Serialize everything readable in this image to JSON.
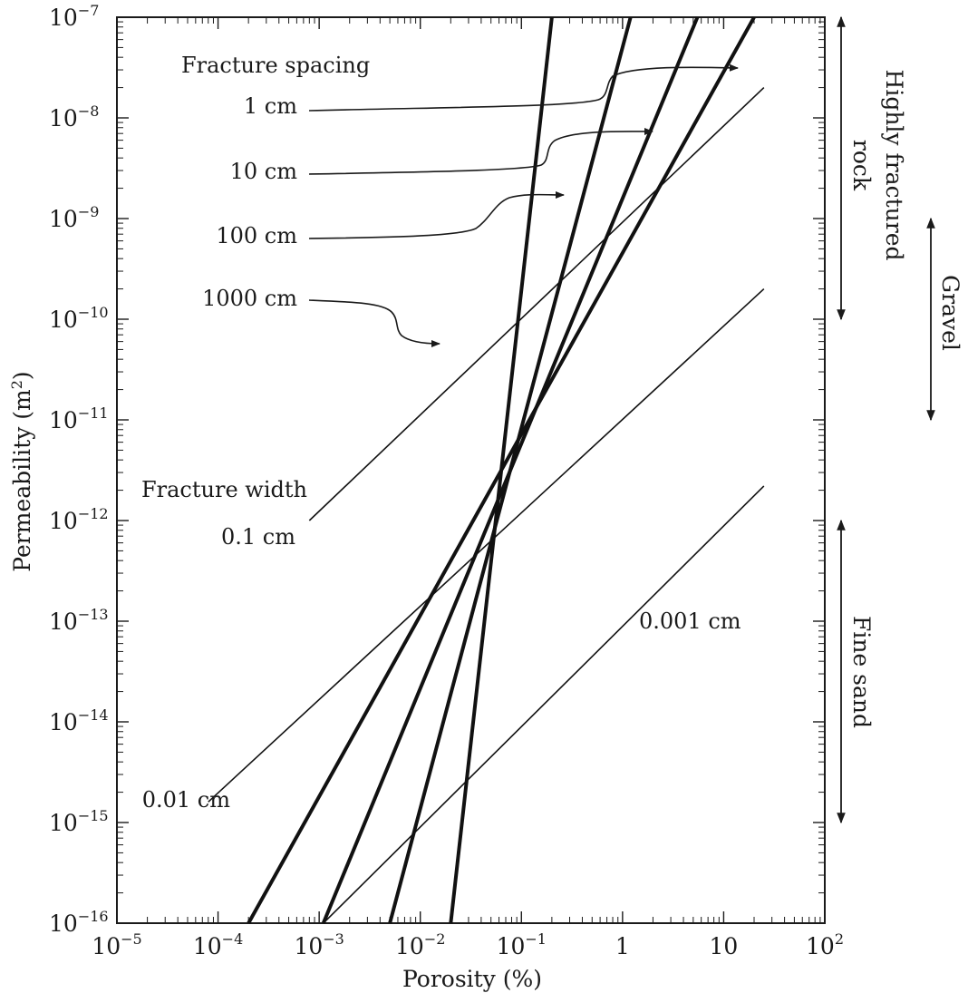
{
  "chart_data": {
    "type": "line",
    "xlabel": "Porosity (%)",
    "ylabel_main": "Permeability (m",
    "ylabel_sup": "2",
    "ylabel_close": ")",
    "x_scale": "log",
    "y_scale": "log",
    "xlim": [
      1e-05,
      100
    ],
    "ylim": [
      1e-16,
      1e-07
    ],
    "grid": false,
    "x_ticks": [
      {
        "value": 1e-05,
        "base": "10",
        "exp": "−5"
      },
      {
        "value": 0.0001,
        "base": "10",
        "exp": "−4"
      },
      {
        "value": 0.001,
        "base": "10",
        "exp": "−3"
      },
      {
        "value": 0.01,
        "base": "10",
        "exp": "−2"
      },
      {
        "value": 0.1,
        "base": "10",
        "exp": "−1"
      },
      {
        "value": 1,
        "base": "1",
        "exp": ""
      },
      {
        "value": 10,
        "base": "10",
        "exp": ""
      },
      {
        "value": 100,
        "base": "10",
        "exp": "2"
      }
    ],
    "y_ticks": [
      {
        "value": 1e-07,
        "base": "10",
        "exp": "−7"
      },
      {
        "value": 1e-08,
        "base": "10",
        "exp": "−8"
      },
      {
        "value": 1e-09,
        "base": "10",
        "exp": "−9"
      },
      {
        "value": 1e-10,
        "base": "10",
        "exp": "−10"
      },
      {
        "value": 1e-11,
        "base": "10",
        "exp": "−11"
      },
      {
        "value": 1e-12,
        "base": "10",
        "exp": "−12"
      },
      {
        "value": 1e-13,
        "base": "10",
        "exp": "−13"
      },
      {
        "value": 1e-14,
        "base": "10",
        "exp": "−14"
      },
      {
        "value": 1e-15,
        "base": "10",
        "exp": "−15"
      },
      {
        "value": 1e-16,
        "base": "10",
        "exp": "−16"
      }
    ],
    "spacing_group_label": "Fracture spacing",
    "spacing_series": [
      {
        "name": "1 cm",
        "points": [
          [
            0.02,
            1e-16
          ],
          [
            0.2,
            1e-07
          ]
        ]
      },
      {
        "name": "10 cm",
        "points": [
          [
            0.005,
            1e-16
          ],
          [
            1.2,
            1e-07
          ]
        ]
      },
      {
        "name": "100 cm",
        "points": [
          [
            0.0011,
            1e-16
          ],
          [
            5.5,
            1e-07
          ]
        ]
      },
      {
        "name": "1000 cm",
        "points": [
          [
            0.0002,
            1e-16
          ],
          [
            20,
            1e-07
          ]
        ]
      }
    ],
    "width_group_label": "Fracture width",
    "width_series": [
      {
        "name": "0.1 cm",
        "points": [
          [
            0.0008,
            1e-12
          ],
          [
            25,
            2e-08
          ]
        ]
      },
      {
        "name": "0.01 cm",
        "points": [
          [
            8e-05,
            1.6e-15
          ],
          [
            25,
            2e-10
          ]
        ]
      },
      {
        "name": "0.001 cm",
        "points": [
          [
            0.0011,
            1e-16
          ],
          [
            25,
            2.2e-12
          ]
        ]
      }
    ],
    "ranges": [
      {
        "name": "Highly fractured rock",
        "lines": [
          "Highly fractured",
          "rock"
        ],
        "from": 1e-07,
        "to": 1e-10
      },
      {
        "name": "Gravel",
        "lines": [
          "Gravel"
        ],
        "from": 1e-09,
        "to": 1e-11
      },
      {
        "name": "Fine sand",
        "lines": [
          "Fine sand"
        ],
        "from": 1e-12,
        "to": 1e-15
      }
    ]
  }
}
